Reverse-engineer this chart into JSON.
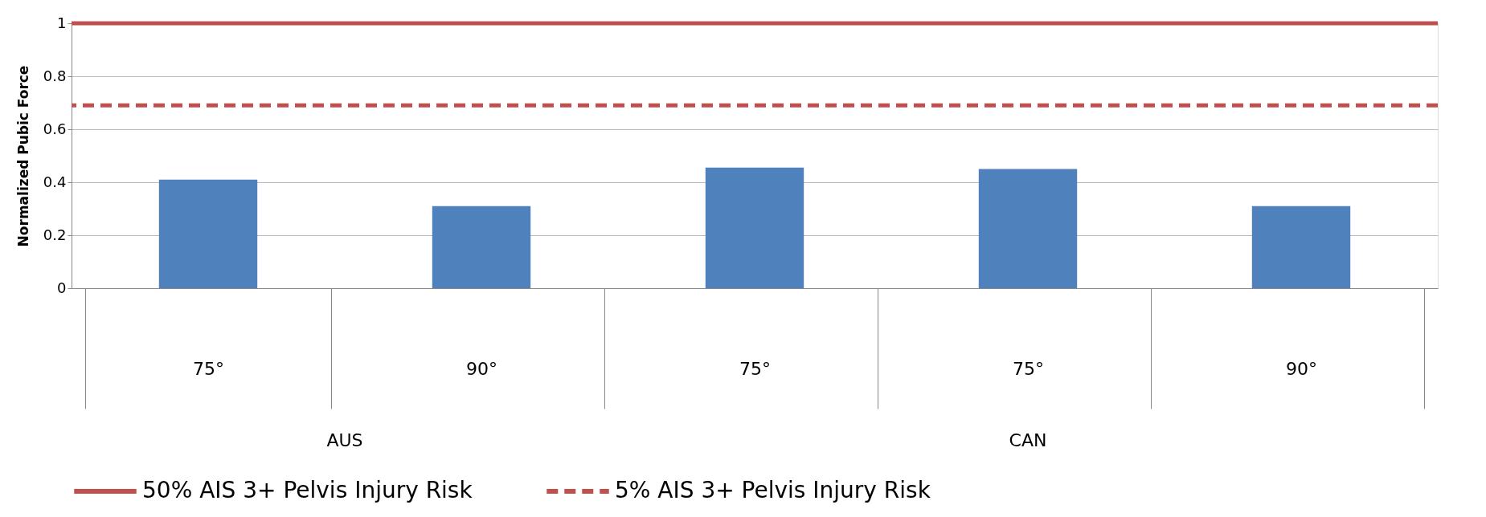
{
  "chart_data": {
    "type": "bar",
    "ylabel": "Normalized Pubic Force",
    "categories": [
      "75°",
      "90°",
      "75°",
      "75°",
      "90°"
    ],
    "values": [
      0.41,
      0.31,
      0.455,
      0.45,
      0.31
    ],
    "color": "#4f81bd",
    "ylim": [
      0,
      1
    ],
    "yticks": [
      0,
      0.2,
      0.4,
      0.6,
      0.8,
      1
    ],
    "grid": "y",
    "legend": "bottom",
    "annotations": [
      "AUS",
      "CAN"
    ],
    "ref_lines": [
      {
        "axis": "y",
        "value": 1,
        "label": "50% AIS 3+ Pelvis Injury Risk",
        "color": "#c0504d",
        "line_style": "solid"
      },
      {
        "axis": "y",
        "value": 0.69,
        "label": "5% AIS 3+ Pelvis Injury Risk",
        "color": "#c0504d",
        "line_style": "dashed"
      }
    ]
  }
}
